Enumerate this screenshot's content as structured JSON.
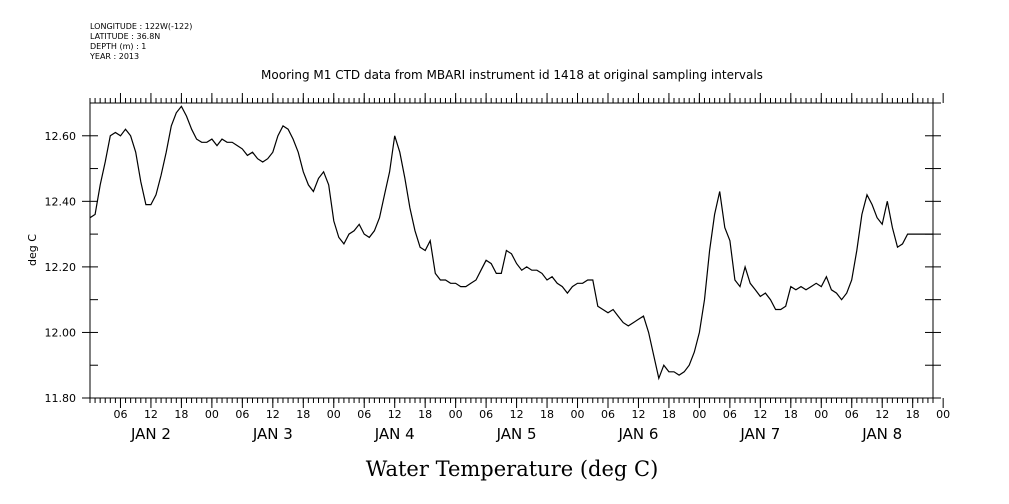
{
  "metadata": {
    "longitude": "LONGITUDE : 122W(-122)",
    "latitude": "LATITUDE : 36.8N",
    "depth": "DEPTH (m) : 1",
    "year": "YEAR : 2013"
  },
  "chart_data": {
    "type": "line",
    "title": "Mooring M1 CTD data from MBARI instrument id 1418 at original sampling intervals",
    "xlabel": "Water Temperature (deg C)",
    "ylabel": "deg C",
    "ylim": [
      11.8,
      12.7
    ],
    "xlim_hours": [
      0,
      166
    ],
    "yticks": [
      "11.80",
      "12.00",
      "12.20",
      "12.40",
      "12.60"
    ],
    "xtick_labels": [
      "06",
      "12",
      "18",
      "00",
      "06",
      "12",
      "18",
      "00",
      "06",
      "12",
      "18",
      "00",
      "06",
      "12",
      "18",
      "00",
      "06",
      "12",
      "18",
      "00",
      "06",
      "12",
      "18",
      "00",
      "06",
      "12",
      "18",
      "00"
    ],
    "day_labels": [
      "JAN  2",
      "JAN  3",
      "JAN  4",
      "JAN  5",
      "JAN  6",
      "JAN  7",
      "JAN  8"
    ],
    "line_color": "#000000",
    "series": [
      {
        "x": [
          0,
          1,
          2,
          3,
          4,
          5,
          6,
          7,
          8,
          9,
          10,
          11,
          12,
          13,
          14,
          15,
          16,
          17,
          18,
          19,
          20,
          21,
          22,
          23,
          24,
          25,
          26,
          27,
          28,
          29,
          30,
          31,
          32,
          33,
          34,
          35,
          36,
          37,
          38,
          39,
          40,
          41,
          42,
          43,
          44,
          45,
          46,
          47,
          48,
          49,
          50,
          51,
          52,
          53,
          54,
          55,
          56,
          57,
          58,
          59,
          60,
          61,
          62,
          63,
          64,
          65,
          66,
          67,
          68,
          69,
          70,
          71,
          72,
          73,
          74,
          75,
          76,
          77,
          78,
          79,
          80,
          81,
          82,
          83,
          84,
          85,
          86,
          87,
          88,
          89,
          90,
          91,
          92,
          93,
          94,
          95,
          96,
          97,
          98,
          99,
          100,
          101,
          102,
          103,
          104,
          105,
          106,
          107,
          108,
          109,
          110,
          111,
          112,
          113,
          114,
          115,
          116,
          117,
          118,
          119,
          120,
          121,
          122,
          123,
          124,
          125,
          126,
          127,
          128,
          129,
          130,
          131,
          132,
          133,
          134,
          135,
          136,
          137,
          138,
          139,
          140,
          141,
          142,
          143,
          144,
          145,
          146,
          147,
          148,
          149,
          150,
          151,
          152,
          153,
          154,
          155,
          156,
          157,
          158,
          159,
          160,
          161,
          162,
          163,
          164,
          165,
          166
        ],
        "values": [
          12.35,
          12.36,
          12.45,
          12.52,
          12.6,
          12.61,
          12.6,
          12.62,
          12.6,
          12.55,
          12.46,
          12.39,
          12.39,
          12.42,
          12.48,
          12.55,
          12.63,
          12.67,
          12.69,
          12.66,
          12.62,
          12.59,
          12.58,
          12.58,
          12.59,
          12.57,
          12.59,
          12.58,
          12.58,
          12.57,
          12.56,
          12.54,
          12.55,
          12.53,
          12.52,
          12.53,
          12.55,
          12.6,
          12.63,
          12.62,
          12.59,
          12.55,
          12.49,
          12.45,
          12.43,
          12.47,
          12.49,
          12.45,
          12.34,
          12.29,
          12.27,
          12.3,
          12.31,
          12.33,
          12.3,
          12.29,
          12.31,
          12.35,
          12.42,
          12.49,
          12.6,
          12.55,
          12.47,
          12.38,
          12.31,
          12.26,
          12.25,
          12.28,
          12.18,
          12.16,
          12.16,
          12.15,
          12.15,
          12.14,
          12.14,
          12.15,
          12.16,
          12.19,
          12.22,
          12.21,
          12.18,
          12.18,
          12.25,
          12.24,
          12.21,
          12.19,
          12.2,
          12.19,
          12.19,
          12.18,
          12.16,
          12.17,
          12.15,
          12.14,
          12.12,
          12.14,
          12.15,
          12.15,
          12.16,
          12.16,
          12.08,
          12.07,
          12.06,
          12.07,
          12.05,
          12.03,
          12.02,
          12.03,
          12.04,
          12.05,
          12.0,
          11.93,
          11.86,
          11.9,
          11.88,
          11.88,
          11.87,
          11.88,
          11.9,
          11.94,
          12.0,
          12.1,
          12.25,
          12.36,
          12.43,
          12.32,
          12.28,
          12.16,
          12.14,
          12.2,
          12.15,
          12.13,
          12.11,
          12.12,
          12.1,
          12.07,
          12.07,
          12.08,
          12.14,
          12.13,
          12.14,
          12.13,
          12.14,
          12.15,
          12.14,
          12.17,
          12.13,
          12.12,
          12.1,
          12.12,
          12.16,
          12.25,
          12.36,
          12.42,
          12.39,
          12.35,
          12.33,
          12.4,
          12.32,
          12.26,
          12.27,
          12.3,
          12.3,
          12.3,
          12.3,
          12.3,
          12.3
        ]
      }
    ]
  }
}
